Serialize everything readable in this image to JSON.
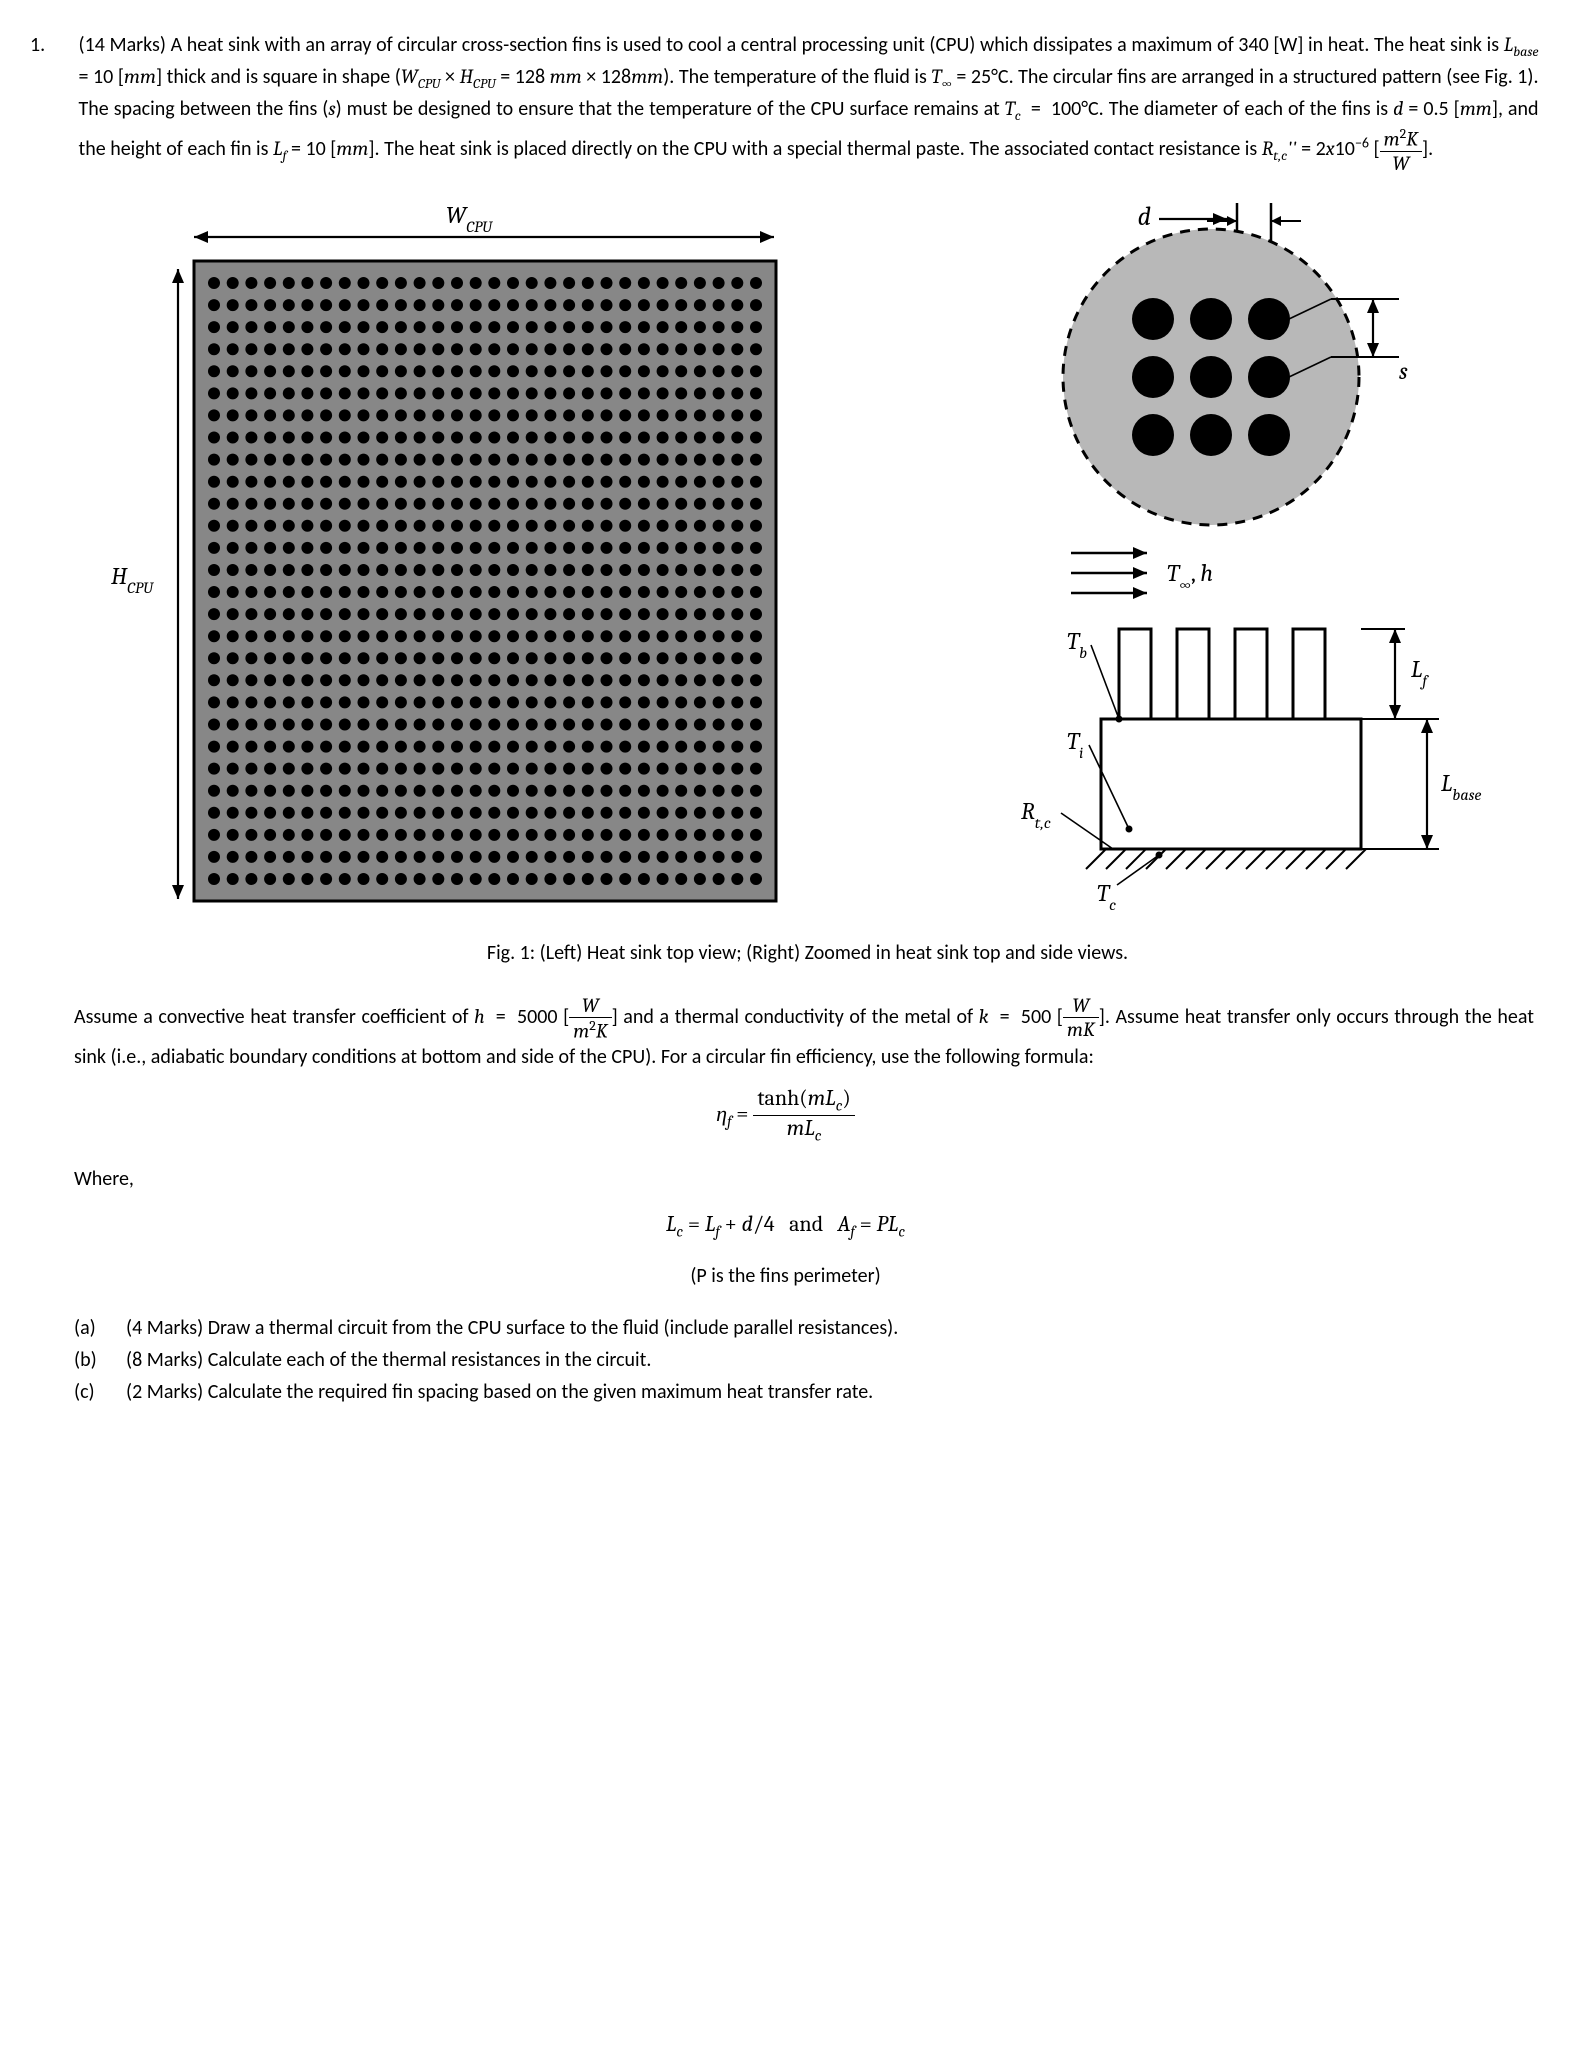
{
  "question_number": "1.",
  "marks_prefix": "(14 Marks)",
  "para1_html": "A heat sink with an array of circular cross-section fins is used to cool a central processing unit (CPU) which dissipates a maximum of 340 [W] in heat. The heat sink is <span class='math it'>L<span class='sub'>base</span></span> = 10 [<span class='math it'>mm</span>] thick and is square in shape (<span class='math it'>W<span class='sub'>CPU</span></span> × <span class='math it'>H<span class='sub'>CPU</span></span> = 128 <span class='math it'>mm</span> × 128<span class='math it'>mm</span>). The temperature of the fluid is <span class='math it'>T<span class='sub'>∞</span></span> = 25°C. The circular fins are arranged in a structured pattern (see Fig. 1). The spacing between the fins (<span class='math it'>s</span>) must be designed to ensure that the temperature of the CPU surface remains at <span class='math it'>T<span class='sub'>c</span></span> &nbsp;=&nbsp; 100°C. The diameter of each of the fins is <span class='math it'>d</span> = 0.5 [<span class='math it'>mm</span>], and the height of each fin is <span class='math it'>L<span class='sub'>f</span></span> = 10 [<span class='math it'>mm</span>]. The heat sink is placed directly on the CPU with a special thermal paste. The associated contact resistance is <span class='math it'>R<span class='sub'>t,c</span>''</span> = 2<span class='math it'>x</span>10<span class='sup'>−6</span> [<span class='frac'><span class='num'><span class='it'>m</span><span class='sup'>2</span><span class='it'>K</span></span><span class='den'><span class='it'>W</span></span></span>].",
  "fig_caption": "Fig. 1: (Left) Heat sink top view; (Right) Zoomed in heat sink top and side views.",
  "para2_html": "Assume a convective heat transfer coefficient of <span class='math it'>h</span> &nbsp;=&nbsp; 5000 [<span class='frac'><span class='num'><span class='it'>W</span></span><span class='den'><span class='it'>m</span><span class='sup'>2</span><span class='it'>K</span></span></span>] and a thermal conductivity of the metal of <span class='math it'>k</span> &nbsp;=&nbsp; 500 [<span class='frac'><span class='num'><span class='it'>W</span></span><span class='den'><span class='it'>mK</span></span></span>]. Assume heat transfer only occurs through the heat sink (i.e., adiabatic boundary conditions at bottom and side of the CPU). For a circular fin efficiency, use the following formula:",
  "eq1_html": "<span class='it'>η<span class='sub'>f</span></span> = <span class='frac'><span class='num'>tanh(<span class='it'>mL<span class='sub'>c</span></span>)</span><span class='den'><span class='it'>mL<span class='sub'>c</span></span></span></span>",
  "where_label": "Where,",
  "eq2_html": "<span class='it'>L<span class='sub'>c</span></span> = <span class='it'>L<span class='sub'>f</span></span> + <span class='it'>d</span>/4&nbsp;&nbsp;&nbsp;and&nbsp;&nbsp;&nbsp;<span class='it'>A<span class='sub'>f</span></span> = <span class='it'>PL<span class='sub'>c</span></span>",
  "eq2_note": "(P is the fins perimeter)",
  "subparts": [
    {
      "lbl": "(a)",
      "txt": "(4 Marks) Draw a thermal circuit from the CPU surface to the fluid (include parallel resistances)."
    },
    {
      "lbl": "(b)",
      "txt": "(8 Marks) Calculate each of the thermal resistances in the circuit."
    },
    {
      "lbl": "(c)",
      "txt": "(2 Marks) Calculate the required fin spacing based on the given maximum heat transfer rate."
    }
  ],
  "labels": {
    "WCPU": "W",
    "WCPU_sub": "CPU",
    "HCPU": "H",
    "HCPU_sub": "CPU",
    "d": "d",
    "s": "s",
    "Tinf": "T",
    "Tinf_sub": "∞",
    "h": ", h",
    "Tb": "T",
    "Tb_sub": "b",
    "Ti": "T",
    "Ti_sub": "i",
    "Tc": "T",
    "Tc_sub": "c",
    "Rtc": "R",
    "Rtc_sub": "t,c",
    "Lf": "L",
    "Lf_sub": "f",
    "Lbase": "L",
    "Lbase_sub": "base"
  },
  "style": {
    "page_bg": "#ffffff",
    "text_color": "#000000",
    "sink_square_fill": "#878787",
    "sink_square_border": "#000000",
    "fin_dot_color": "#000000",
    "zoom_circle_fill": "#b8b8b8",
    "zoom_circle_dash": "#000000",
    "top_grid": {
      "cols": 30,
      "rows": 28
    }
  }
}
